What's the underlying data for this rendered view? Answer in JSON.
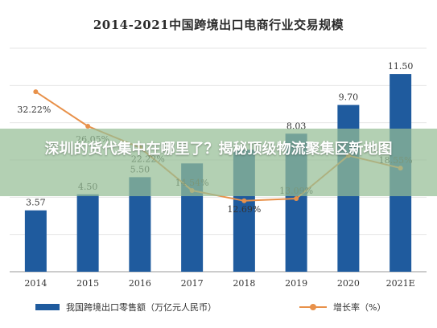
{
  "chart_data": {
    "type": "bar",
    "title": "2014-2021中国跨境出口电商行业交易规模",
    "categories": [
      "2014",
      "2015",
      "2016",
      "2017",
      "2018",
      "2019",
      "2020",
      "2021E"
    ],
    "bar_series": {
      "name": "我国跨境出口零售额（万亿元人民币）",
      "values": [
        3.57,
        4.5,
        5.5,
        6.3,
        7.1,
        8.03,
        9.7,
        11.5
      ],
      "labels": [
        "3.57",
        "4.50",
        "5.50",
        "",
        "",
        "8.03",
        "9.70",
        "11.50"
      ],
      "color": "#1f5b9e"
    },
    "line_series": {
      "name": "增长率（%）",
      "values": [
        32.22,
        26.05,
        22.22,
        14.54,
        12.69,
        13.09,
        20.8,
        18.55
      ],
      "labels": [
        "32.22%",
        "26.05%",
        "22.22%",
        "14.54%",
        "12.69%",
        "13.09%",
        "",
        "18.55%"
      ],
      "color": "#e8914a"
    },
    "bar_axis_range": [
      0,
      13
    ],
    "line_axis_range": [
      0,
      40
    ],
    "grid": "horizontal",
    "legend_position": "bottom"
  },
  "overlay": {
    "caption": "深圳的货代集中在哪里了？揭秘顶级物流聚集区新地图",
    "band_color": "#96be96"
  }
}
